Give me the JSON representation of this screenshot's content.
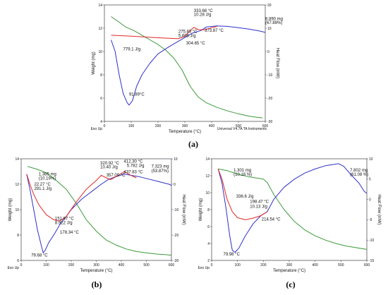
{
  "chart_data": [
    {
      "panel": "a",
      "type": "line",
      "caption": "(a)",
      "xlabel": "Temperature (°C)",
      "ylabel": "Weight (mg)",
      "ylabel_right": "Heat Flow (mW)",
      "xlim": [
        0,
        600
      ],
      "ylim": [
        4,
        14
      ],
      "ylim_right": [
        -30,
        20
      ],
      "xticks": [
        "0",
        "100",
        "200",
        "300",
        "400",
        "500",
        "600"
      ],
      "yticks": [
        "4",
        "6",
        "8",
        "10",
        "12",
        "14"
      ],
      "yticks_right": [
        "-30",
        "-20",
        "-10",
        "0",
        "10",
        "20"
      ],
      "exo_label": "Exo Up",
      "footer": "Universal V4.7A TA Instruments",
      "series": [
        {
          "color": "#3a9a3a",
          "axis": "left",
          "x": [
            25,
            50,
            80,
            110,
            140,
            170,
            200,
            230,
            260,
            290,
            320,
            350,
            380,
            420,
            460,
            500,
            540,
            570,
            590
          ],
          "y": [
            13.0,
            12.6,
            12.1,
            11.8,
            11.4,
            11.0,
            10.6,
            10.1,
            9.4,
            8.4,
            7.0,
            6.1,
            5.6,
            5.2,
            4.9,
            4.65,
            4.45,
            4.35,
            4.3
          ]
        },
        {
          "color": "#3030c8",
          "axis": "right",
          "x": [
            25,
            40,
            55,
            70,
            85,
            92,
            105,
            120,
            140,
            170,
            200,
            240,
            270,
            300,
            330,
            360,
            380,
            420,
            460,
            500,
            540,
            580,
            600
          ],
          "y": [
            5,
            0,
            -10,
            -18,
            -22,
            -23,
            -21,
            -15,
            -10,
            -5,
            -1,
            2,
            4,
            6,
            8,
            9,
            10.5,
            11,
            10.8,
            10.2,
            9.6,
            8.8,
            8.2
          ]
        },
        {
          "color": "#e02828",
          "axis": "right",
          "x": [
            25,
            100,
            200,
            276,
            300,
            320,
            334,
            350,
            374,
            400,
            420
          ],
          "y": [
            7,
            6.6,
            5.9,
            5.5,
            6.5,
            9,
            10.4,
            9.4,
            9.3,
            10.2,
            10.8
          ]
        }
      ],
      "annotations": [
        {
          "text": "333.68 °C",
          "x": 333.68,
          "y": 13.4
        },
        {
          "text": "10.28 J/g",
          "x": 333.68,
          "y": 13.05
        },
        {
          "text": "275.83 °C",
          "x": 276,
          "y": 11.6
        },
        {
          "text": "5.608 J/g",
          "x": 276,
          "y": 11.25
        },
        {
          "text": "373.87 °C",
          "x": 374,
          "y": 11.7
        },
        {
          "text": "304.65 °C",
          "x": 305,
          "y": 10.6
        },
        {
          "text": "779.1 J/g",
          "x": 70,
          "y": 10.1
        },
        {
          "text": "91.89°C",
          "x": 92,
          "y": 6.2
        },
        {
          "text": "8.890 mg",
          "x": 600,
          "y": 12.7
        },
        {
          "text": "(67.89%)",
          "x": 600,
          "y": 12.35
        }
      ]
    },
    {
      "panel": "b",
      "type": "line",
      "caption": "(b)",
      "xlabel": "Temperature (°C)",
      "ylabel": "Weight (mg)",
      "ylabel_right": "Heat Flow (mW)",
      "xlim": [
        0,
        600
      ],
      "ylim": [
        6,
        14
      ],
      "ylim_right": [
        -30,
        10
      ],
      "xticks": [
        "0",
        "100",
        "200",
        "300",
        "400",
        "500",
        "600"
      ],
      "yticks": [
        "6",
        "8",
        "10",
        "12",
        "14"
      ],
      "yticks_right": [
        "-30",
        "-20",
        "-10",
        "0",
        "10"
      ],
      "exo_label": "Exo Up",
      "series": [
        {
          "color": "#3a9a3a",
          "axis": "left",
          "x": [
            25,
            60,
            100,
            140,
            180,
            220,
            260,
            300,
            340,
            380,
            420,
            460,
            500,
            540,
            580,
            600
          ],
          "y": [
            13.4,
            13.2,
            12.9,
            12.3,
            11.6,
            10.5,
            9.2,
            8.3,
            7.6,
            7.2,
            6.9,
            6.7,
            6.6,
            6.5,
            6.45,
            6.4
          ]
        },
        {
          "color": "#3030c8",
          "axis": "right",
          "x": [
            22,
            35,
            50,
            65,
            80,
            88,
            96,
            110,
            130,
            160,
            178,
            200,
            240,
            280,
            320,
            350,
            380,
            412,
            438,
            470,
            510,
            550,
            590,
            600
          ],
          "y": [
            4,
            -2,
            -10,
            -18,
            -24,
            -27,
            -26,
            -23,
            -20,
            -15,
            -13,
            -10,
            -6,
            -3,
            0,
            2,
            3,
            4,
            3.5,
            3,
            2,
            1,
            0,
            -0.5
          ]
        },
        {
          "color": "#e02828",
          "axis": "right",
          "x": [
            22,
            35,
            50,
            70,
            100,
            130,
            152,
            178,
            220,
            260,
            300,
            320,
            340,
            357,
            380,
            412,
            438,
            460
          ],
          "y": [
            4,
            0,
            -4,
            -8,
            -12,
            -14,
            -14.5,
            -13,
            -7,
            -2,
            1.5,
            3.5,
            2.5,
            1.8,
            3,
            5,
            3.5,
            2.5
          ]
        }
      ],
      "annotations": [
        {
          "text": "1.385 mg",
          "x": 70,
          "y": 12.7
        },
        {
          "text": "(10.19%)",
          "x": 70,
          "y": 12.35
        },
        {
          "text": "22.27 °C",
          "x": 52,
          "y": 11.9
        },
        {
          "text": "291.1 J/g",
          "x": 52,
          "y": 11.55
        },
        {
          "text": "320.92 °C",
          "x": 316,
          "y": 13.55
        },
        {
          "text": "10.40 J/g",
          "x": 316,
          "y": 13.25
        },
        {
          "text": "412.30 °C",
          "x": 410,
          "y": 13.7
        },
        {
          "text": "5.782 J/g",
          "x": 422,
          "y": 13.35
        },
        {
          "text": "437.83 °C",
          "x": 410,
          "y": 12.85
        },
        {
          "text": "357.09 °C",
          "x": 340,
          "y": 12.6
        },
        {
          "text": "7.323 mg",
          "x": 520,
          "y": 13.3
        },
        {
          "text": "(53.87%)",
          "x": 520,
          "y": 12.95
        },
        {
          "text": "151.97 °C",
          "x": 135,
          "y": 9.2
        },
        {
          "text": "8.922 J/g",
          "x": 135,
          "y": 8.85
        },
        {
          "text": "178.34 °C",
          "x": 155,
          "y": 8.1
        },
        {
          "text": "79.68 °C",
          "x": 40,
          "y": 6.3
        }
      ]
    },
    {
      "panel": "c",
      "type": "line",
      "caption": "(c)",
      "xlabel": "Temperature (°C)",
      "ylabel": "Weight (mg)",
      "ylabel_right": "Heat Flow (mW)",
      "xlim": [
        0,
        600
      ],
      "ylim": [
        2,
        14
      ],
      "ylim_right": [
        -15,
        10
      ],
      "xticks": [
        "0",
        "100",
        "200",
        "300",
        "400",
        "500",
        "600"
      ],
      "yticks": [
        "2",
        "4",
        "6",
        "8",
        "10",
        "12",
        "14"
      ],
      "yticks_right": [
        "-15",
        "-10",
        "-5",
        "0",
        "5",
        "10"
      ],
      "exo_label": "Exo Up",
      "series": [
        {
          "color": "#3a9a3a",
          "axis": "left",
          "x": [
            25,
            60,
            100,
            140,
            180,
            200,
            215,
            240,
            280,
            320,
            360,
            400,
            440,
            480,
            520,
            560,
            600
          ],
          "y": [
            12.8,
            12.6,
            12.2,
            11.9,
            11.7,
            11.6,
            11.2,
            9.8,
            8.0,
            6.6,
            5.6,
            4.9,
            4.4,
            4.0,
            3.7,
            3.5,
            3.3
          ]
        },
        {
          "color": "#3030c8",
          "axis": "right",
          "x": [
            25,
            40,
            55,
            70,
            80,
            90,
            105,
            130,
            160,
            190,
            215,
            240,
            280,
            320,
            360,
            400,
            440,
            470,
            490,
            510,
            540,
            570,
            590,
            600
          ],
          "y": [
            7.5,
            4,
            -2,
            -9,
            -12.5,
            -13,
            -12,
            -9,
            -6,
            -4,
            -3,
            0,
            3,
            5,
            6.5,
            7.5,
            8.3,
            8.6,
            8.8,
            8.2,
            6,
            4,
            2,
            1.5
          ]
        },
        {
          "color": "#e02828",
          "axis": "right",
          "x": [
            25,
            40,
            60,
            80,
            100,
            130,
            160,
            190,
            215
          ],
          "y": [
            7.5,
            5,
            0,
            -3,
            -4.5,
            -5,
            -4.6,
            -4,
            -3
          ]
        }
      ],
      "annotations": [
        {
          "text": "1.301 mg",
          "x": 85,
          "y": 12.5
        },
        {
          "text": "(10.18 %)",
          "x": 85,
          "y": 12.0
        },
        {
          "text": "336.6 J/g",
          "x": 95,
          "y": 9.4
        },
        {
          "text": "198.47 °C",
          "x": 148,
          "y": 8.8
        },
        {
          "text": "10.13 J/g",
          "x": 148,
          "y": 8.2
        },
        {
          "text": "214.54 °C",
          "x": 193,
          "y": 6.7
        },
        {
          "text": "7.802 mg",
          "x": 535,
          "y": 12.5
        },
        {
          "text": "(61.08 %)",
          "x": 535,
          "y": 12.0
        },
        {
          "text": "79.98 °C",
          "x": 45,
          "y": 2.6
        }
      ]
    }
  ]
}
